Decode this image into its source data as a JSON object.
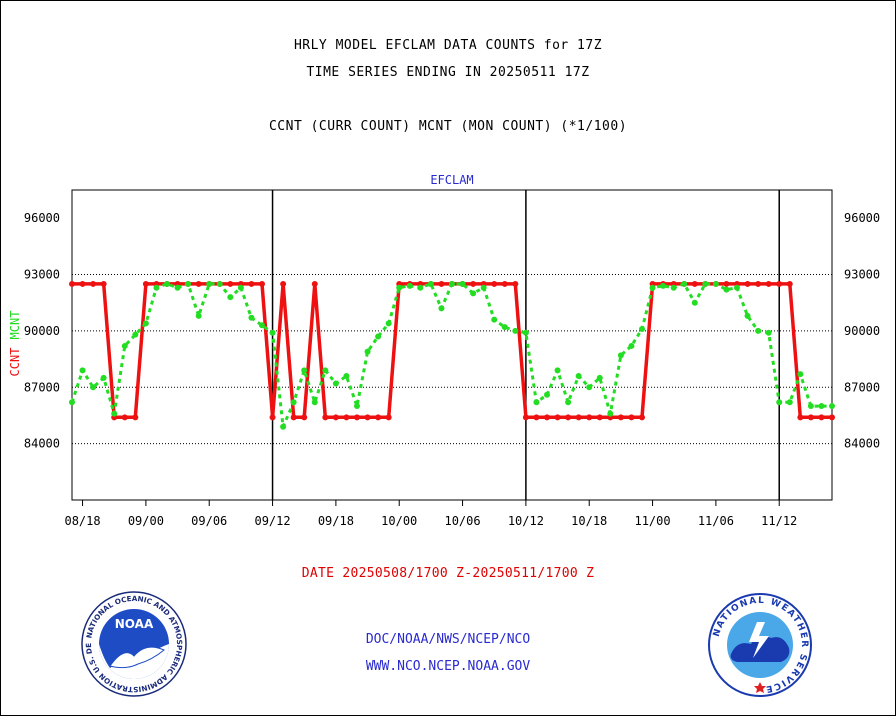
{
  "header": {
    "title1": "HRLY MODEL EFCLAM DATA COUNTS for 17Z",
    "title2": "TIME SERIES ENDING IN 20250511 17Z",
    "subtitle": "CCNT (CURR COUNT) MCNT (MON COUNT) (*1/100)"
  },
  "chart_data": {
    "type": "line",
    "title": "EFCLAM",
    "ylabel_left_1": "CCNT",
    "ylabel_left_2": "MCNT",
    "ylim": [
      81000,
      97500
    ],
    "yticks": [
      84000,
      87000,
      90000,
      93000,
      96000
    ],
    "ytick_labels": [
      "84000",
      "87000",
      "90000",
      "93000",
      "96000"
    ],
    "xticks": [
      "08/18",
      "09/00",
      "09/06",
      "09/12",
      "09/18",
      "10/00",
      "10/06",
      "10/12",
      "10/18",
      "11/00",
      "11/06",
      "11/12"
    ],
    "xtick_hours": [
      1,
      7,
      13,
      19,
      25,
      31,
      37,
      43,
      49,
      55,
      61,
      67
    ],
    "day_boundaries_hours": [
      19,
      43,
      67
    ],
    "x_hours_offset_from": "08/17",
    "grid": true,
    "series": [
      {
        "name": "CCNT",
        "color": "#ee1111",
        "style": "solid",
        "x": [
          0,
          1,
          2,
          3,
          4,
          5,
          6,
          7,
          8,
          9,
          10,
          11,
          12,
          13,
          14,
          15,
          16,
          17,
          18,
          19,
          20,
          21,
          22,
          23,
          24,
          25,
          26,
          27,
          28,
          29,
          30,
          31,
          32,
          33,
          34,
          35,
          36,
          37,
          38,
          39,
          40,
          41,
          42,
          43,
          44,
          45,
          46,
          47,
          48,
          49,
          50,
          51,
          52,
          53,
          54,
          55,
          56,
          57,
          58,
          59,
          60,
          61,
          62,
          63,
          64,
          65,
          66,
          67,
          68,
          69,
          70,
          71,
          72
        ],
        "values": [
          92500,
          92500,
          92500,
          92500,
          85400,
          85400,
          85400,
          92500,
          92500,
          92500,
          92500,
          92500,
          92500,
          92500,
          92500,
          92500,
          92500,
          92500,
          92500,
          85400,
          92500,
          85400,
          85400,
          92500,
          85400,
          85400,
          85400,
          85400,
          85400,
          85400,
          85400,
          92500,
          92500,
          92500,
          92500,
          92500,
          92500,
          92500,
          92500,
          92500,
          92500,
          92500,
          92500,
          85400,
          85400,
          85400,
          85400,
          85400,
          85400,
          85400,
          85400,
          85400,
          85400,
          85400,
          85400,
          92500,
          92500,
          92500,
          92500,
          92500,
          92500,
          92500,
          92500,
          92500,
          92500,
          92500,
          92500,
          92500,
          92500,
          85400,
          85400,
          85400,
          85400
        ]
      },
      {
        "name": "MCNT",
        "color": "#22dd22",
        "style": "dotted",
        "x": [
          0,
          1,
          2,
          3,
          4,
          5,
          6,
          7,
          8,
          9,
          10,
          11,
          12,
          13,
          14,
          15,
          16,
          17,
          18,
          19,
          20,
          21,
          22,
          23,
          24,
          25,
          26,
          27,
          28,
          29,
          30,
          31,
          32,
          33,
          34,
          35,
          36,
          37,
          38,
          39,
          40,
          41,
          42,
          43,
          44,
          45,
          46,
          47,
          48,
          49,
          50,
          51,
          52,
          53,
          54,
          55,
          56,
          57,
          58,
          59,
          60,
          61,
          62,
          63,
          64,
          65,
          66,
          67,
          68,
          69,
          70,
          71,
          72
        ],
        "values": [
          86200,
          87900,
          87000,
          87500,
          85600,
          89200,
          89800,
          90400,
          92300,
          92500,
          92300,
          92500,
          90800,
          92500,
          92500,
          91800,
          92300,
          90700,
          90300,
          89900,
          84900,
          86200,
          87900,
          86200,
          87900,
          87200,
          87600,
          86000,
          88900,
          89700,
          90400,
          92300,
          92400,
          92300,
          92500,
          91200,
          92500,
          92500,
          92000,
          92300,
          90600,
          90200,
          90000,
          89900,
          86200,
          86600,
          87900,
          86200,
          87600,
          87000,
          87500,
          85600,
          88700,
          89200,
          90100,
          92300,
          92400,
          92300,
          92500,
          91500,
          92500,
          92500,
          92200,
          92300,
          90800,
          90000,
          89900,
          86200,
          86200,
          87700,
          86000,
          86000,
          86000
        ]
      }
    ]
  },
  "date_range": "DATE 20250508/1700 Z-20250511/1700 Z",
  "footer": {
    "line1": "DOC/NOAA/NWS/NCEP/NCO",
    "line2": "WWW.NCO.NCEP.NOAA.GOV"
  },
  "logos": {
    "noaa_text": "NOAA",
    "noaa_ring": "NATIONAL OCEANIC AND ATMOSPHERIC ADMINISTRATION U.S. DEPARTMENT OF COMMERCE",
    "nws_ring": "NATIONAL WEATHER SERVICE"
  },
  "colors": {
    "ccnt": "#ee1111",
    "mcnt": "#22dd22",
    "title_blue": "#2a2ad0",
    "date_red": "#e00000"
  }
}
